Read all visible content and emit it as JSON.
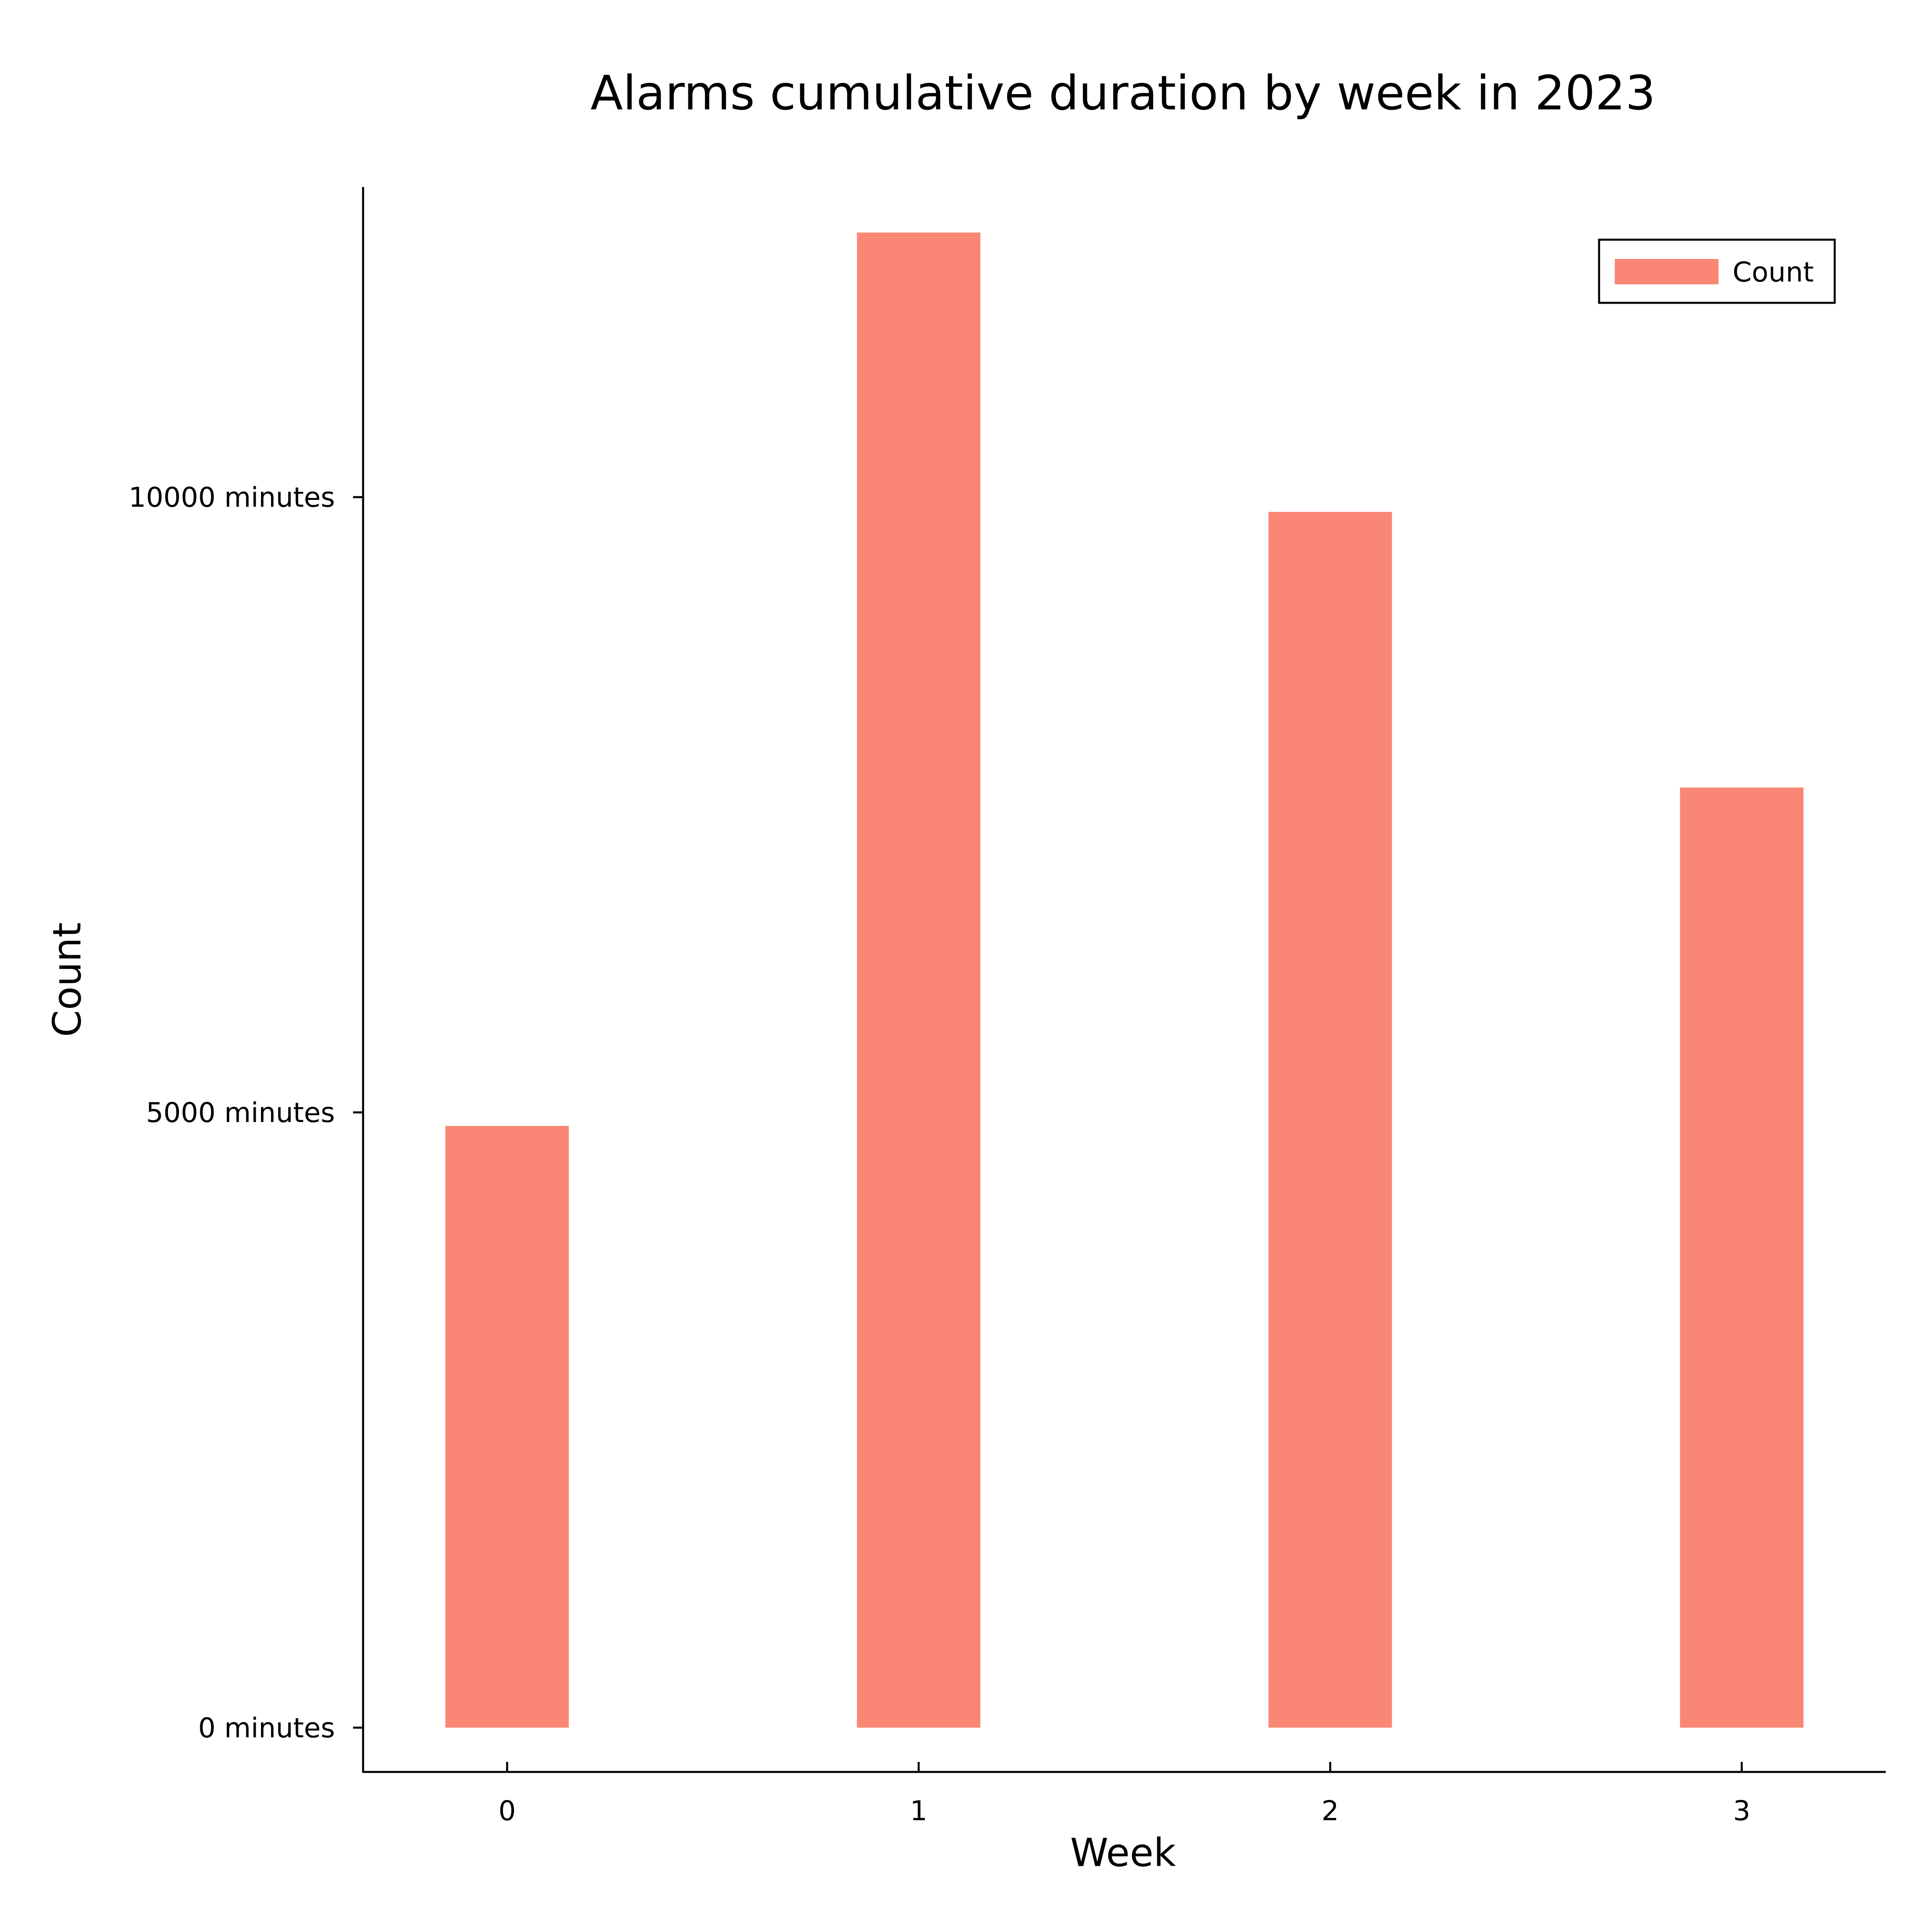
{
  "chart_data": {
    "type": "bar",
    "title": "Alarms cumulative duration by week in 2023",
    "xlabel": "Week",
    "ylabel": "Count",
    "categories": [
      "0",
      "1",
      "2",
      "3"
    ],
    "series": [
      {
        "name": "Count",
        "values": [
          4890,
          12150,
          9880,
          7640
        ],
        "color": "#fa8775"
      }
    ],
    "ylim": [
      -360,
      12520
    ],
    "y_ticks": [
      {
        "value": 0,
        "label": "0 minutes"
      },
      {
        "value": 5000,
        "label": "5000 minutes"
      },
      {
        "value": 10000,
        "label": "10000 minutes"
      }
    ],
    "xlim": [
      -0.35,
      3.35
    ],
    "bar_width": 0.3,
    "grid": false,
    "legend_position": "top-right"
  }
}
